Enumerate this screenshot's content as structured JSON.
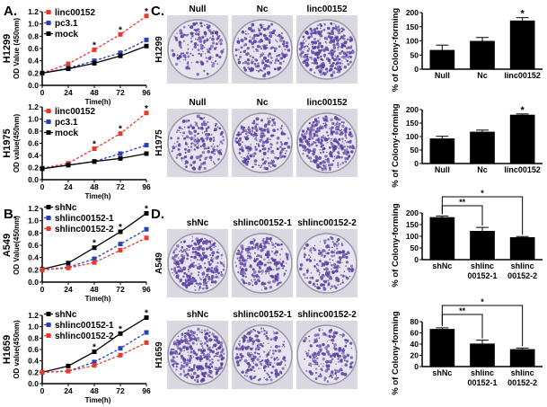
{
  "panel_labels": {
    "a": "A.",
    "b": "B.",
    "c": "C.",
    "d": "D."
  },
  "chart_data": [
    {
      "id": "A1",
      "type": "line",
      "row_label": "H1299",
      "xlabel": "Time(h)",
      "ylabel": "OD Value (450nm)",
      "x": [
        0,
        24,
        48,
        72,
        96
      ],
      "xticks": [
        "0",
        "24",
        "48",
        "72",
        "96"
      ],
      "ylim": [
        0,
        1.2
      ],
      "yticks": [
        "0.0",
        "0.2",
        "0.4",
        "0.6",
        "0.8",
        "1.0",
        "1.2"
      ],
      "legend": "top-left",
      "significance_at": [
        48,
        72,
        96
      ],
      "significance_mark": "*",
      "series": [
        {
          "name": "linc00152",
          "values": [
            0.2,
            0.35,
            0.58,
            0.83,
            1.13
          ],
          "color": "#e8382c",
          "dash": true
        },
        {
          "name": "pc3.1",
          "values": [
            0.2,
            0.28,
            0.4,
            0.53,
            0.74
          ],
          "color": "#2a3fbf",
          "dash": true
        },
        {
          "name": "mock",
          "values": [
            0.2,
            0.27,
            0.36,
            0.48,
            0.64
          ],
          "color": "#000000",
          "dash": false
        }
      ]
    },
    {
      "id": "A2",
      "type": "line",
      "row_label": "H1975",
      "xlabel": "Time(h)",
      "ylabel": "OD value(450nm)",
      "x": [
        0,
        24,
        48,
        72,
        96
      ],
      "xticks": [
        "0",
        "24",
        "48",
        "72",
        "96"
      ],
      "ylim": [
        0,
        1.2
      ],
      "yticks": [
        "0.0",
        "0.2",
        "0.4",
        "0.6",
        "0.8",
        "1.0",
        "1.2"
      ],
      "legend": "top-left",
      "significance_at": [
        48,
        72,
        96
      ],
      "significance_mark": "*",
      "series": [
        {
          "name": "linc00152",
          "values": [
            0.19,
            0.27,
            0.51,
            0.76,
            1.1
          ],
          "color": "#e8382c",
          "dash": true
        },
        {
          "name": "pc3.1",
          "values": [
            0.19,
            0.24,
            0.3,
            0.43,
            0.57
          ],
          "color": "#2a3fbf",
          "dash": true
        },
        {
          "name": "mock",
          "values": [
            0.18,
            0.24,
            0.3,
            0.35,
            0.43
          ],
          "color": "#000000",
          "dash": false
        }
      ]
    },
    {
      "id": "B1",
      "type": "line",
      "row_label": "A549",
      "xlabel": "Time(h)",
      "ylabel": "OD Value(450nm)",
      "x": [
        0,
        24,
        48,
        72,
        96
      ],
      "xticks": [
        "0",
        "24",
        "48",
        "72",
        "96"
      ],
      "ylim": [
        0,
        1.2
      ],
      "yticks": [
        "0.0",
        "0.2",
        "0.4",
        "0.6",
        "0.8",
        "1.0",
        "1.2"
      ],
      "legend": "top-left",
      "significance_at": [
        48,
        72,
        96
      ],
      "significance_mark": "*",
      "series": [
        {
          "name": "shNc",
          "values": [
            0.21,
            0.31,
            0.56,
            0.82,
            1.12
          ],
          "color": "#000000",
          "dash": false
        },
        {
          "name": "shlinc00152-1",
          "values": [
            0.2,
            0.24,
            0.38,
            0.62,
            0.86
          ],
          "color": "#2a3fbf",
          "dash": true
        },
        {
          "name": "shlinc00152-2",
          "values": [
            0.2,
            0.23,
            0.32,
            0.52,
            0.72
          ],
          "color": "#e8382c",
          "dash": true
        }
      ]
    },
    {
      "id": "B2",
      "type": "line",
      "row_label": "H1659",
      "xlabel": "Time(h)",
      "ylabel": "OD value(450nm)",
      "x": [
        0,
        24,
        48,
        72,
        96
      ],
      "xticks": [
        "0",
        "24",
        "48",
        "72",
        "96"
      ],
      "ylim": [
        0,
        1.2
      ],
      "yticks": [
        "0.0",
        "0.2",
        "0.4",
        "0.6",
        "0.8",
        "1.0",
        "1.2"
      ],
      "legend": "top-left",
      "significance_at": [
        48,
        72,
        96
      ],
      "significance_mark": "*",
      "series": [
        {
          "name": "shNc",
          "values": [
            0.2,
            0.31,
            0.56,
            0.88,
            1.16
          ],
          "color": "#000000",
          "dash": false
        },
        {
          "name": "shlinc00152-1",
          "values": [
            0.2,
            0.22,
            0.38,
            0.62,
            0.9
          ],
          "color": "#2a3fbf",
          "dash": true
        },
        {
          "name": "shlinc00152-2",
          "values": [
            0.2,
            0.22,
            0.32,
            0.5,
            0.72
          ],
          "color": "#e8382c",
          "dash": true
        }
      ]
    },
    {
      "id": "C1",
      "type": "bar",
      "ylabel": "% of Colony-forming",
      "categories": [
        "Null",
        "Nc",
        "linc00152"
      ],
      "values": [
        68,
        100,
        172
      ],
      "errors": [
        17,
        12,
        10
      ],
      "ylim": [
        0,
        200
      ],
      "yticks": [
        "0",
        "50",
        "100",
        "150",
        "200"
      ],
      "significance": [
        {
          "bar": 2,
          "mark": "*"
        }
      ]
    },
    {
      "id": "C2",
      "type": "bar",
      "ylabel": "% of Colony-forming",
      "categories": [
        "Null",
        "Nc",
        "linc00152"
      ],
      "values": [
        93,
        118,
        181
      ],
      "errors": [
        8,
        6,
        3
      ],
      "ylim": [
        0,
        200
      ],
      "yticks": [
        "0",
        "50",
        "100",
        "150",
        "200"
      ],
      "significance": [
        {
          "bar": 2,
          "mark": "*"
        }
      ]
    },
    {
      "id": "D1",
      "type": "bar",
      "ylabel": "% of Colony-forming",
      "categories": [
        "shNc",
        "shlinc 00152-1",
        "shlinc 00152-2"
      ],
      "category_lines": [
        [
          "shNc"
        ],
        [
          "shlinc",
          "00152-1"
        ],
        [
          "shlinc",
          "00152-2"
        ]
      ],
      "values": [
        182,
        123,
        96
      ],
      "errors": [
        5,
        15,
        3
      ],
      "ylim": [
        0,
        200
      ],
      "yticks": [
        "0",
        "50",
        "100",
        "150",
        "200"
      ],
      "brackets": [
        {
          "from": 0,
          "to": 1,
          "mark": "**"
        },
        {
          "from": 0,
          "to": 2,
          "mark": "*"
        }
      ]
    },
    {
      "id": "D2",
      "type": "bar",
      "ylabel": "% of Colony-forming",
      "categories": [
        "shNc",
        "shlinc 00152-1",
        "shlinc 00152-2"
      ],
      "category_lines": [
        [
          "shNc"
        ],
        [
          "shlinc",
          "00152-1"
        ],
        [
          "shlinc",
          "00152-2"
        ]
      ],
      "values": [
        67,
        41,
        31
      ],
      "errors": [
        2,
        6,
        2
      ],
      "ylim": [
        0,
        80
      ],
      "yticks": [
        "0",
        "20",
        "40",
        "60",
        "80"
      ],
      "brackets": [
        {
          "from": 0,
          "to": 1,
          "mark": "**"
        },
        {
          "from": 0,
          "to": 2,
          "mark": "*"
        }
      ]
    }
  ],
  "plates": {
    "C": {
      "columns": [
        "Null",
        "Nc",
        "linc00152"
      ],
      "rows": [
        "H1299",
        "H1975"
      ]
    },
    "D": {
      "columns": [
        "shNc",
        "shlinc00152-1",
        "shlinc00152-2"
      ],
      "rows": [
        "A549",
        "H1659"
      ]
    }
  },
  "colors": {
    "stain": "#5a3fa0",
    "plate_bg": "#e6e4ee"
  }
}
